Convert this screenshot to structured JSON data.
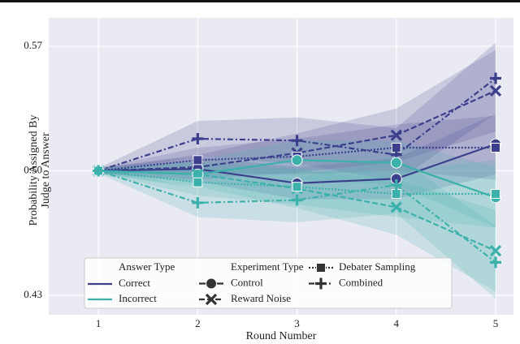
{
  "chart_data": {
    "type": "line",
    "xlabel": "Round Number",
    "ylabel": [
      "Probability Assigned By",
      "Judge to Answer"
    ],
    "x": [
      1,
      2,
      3,
      4,
      5
    ],
    "xlim": [
      0.5,
      5.18
    ],
    "ylim": [
      0.419,
      0.586
    ],
    "xticks": [
      1,
      2,
      3,
      4,
      5
    ],
    "yticks": [
      0.43,
      {
        "value": 0.5,
        "label": "0.50"
      },
      0.57
    ],
    "grid": true,
    "legend_position": "lower left",
    "legend_groups": [
      {
        "title": "Answer Type",
        "entries": [
          {
            "name": "Correct",
            "color": "#3b3f8c"
          },
          {
            "name": "Incorrect",
            "color": "#3cb1ab"
          }
        ]
      },
      {
        "title": "Experiment Type",
        "entries": [
          {
            "name": "Control",
            "dash": "solid",
            "marker": "circle"
          },
          {
            "name": "Reward Noise",
            "dash": "dashed",
            "marker": "x"
          },
          {
            "name": "Debater Sampling",
            "dash": "dotted",
            "marker": "square"
          },
          {
            "name": "Combined",
            "dash": "dashdot",
            "marker": "plus"
          }
        ]
      }
    ],
    "series": [
      {
        "answer": 0,
        "experiment": 0,
        "values": [
          0.5,
          0.501,
          0.493,
          0.4955,
          0.515
        ],
        "lower": [
          0.4985,
          0.494,
          0.484,
          0.484,
          0.498
        ],
        "upper": [
          0.5015,
          0.508,
          0.502,
          0.507,
          0.532
        ]
      },
      {
        "answer": 0,
        "experiment": 1,
        "values": [
          0.5,
          0.502,
          0.51,
          0.52,
          0.545
        ],
        "lower": [
          0.4985,
          0.495,
          0.499,
          0.505,
          0.522
        ],
        "upper": [
          0.5015,
          0.509,
          0.521,
          0.535,
          0.568
        ]
      },
      {
        "answer": 0,
        "experiment": 2,
        "values": [
          0.5,
          0.506,
          0.508,
          0.513,
          0.513
        ],
        "lower": [
          0.4985,
          0.499,
          0.498,
          0.5,
          0.495
        ],
        "upper": [
          0.5015,
          0.513,
          0.518,
          0.526,
          0.531
        ]
      },
      {
        "answer": 0,
        "experiment": 3,
        "values": [
          0.5,
          0.518,
          0.517,
          0.509,
          0.552
        ],
        "lower": [
          0.4985,
          0.508,
          0.504,
          0.494,
          0.532
        ],
        "upper": [
          0.5015,
          0.528,
          0.53,
          0.524,
          0.572
        ]
      },
      {
        "answer": 1,
        "experiment": 0,
        "values": [
          0.5,
          0.498,
          0.506,
          0.5045,
          0.485
        ],
        "lower": [
          0.4985,
          0.49,
          0.495,
          0.492,
          0.468
        ],
        "upper": [
          0.5015,
          0.506,
          0.517,
          0.517,
          0.502
        ]
      },
      {
        "answer": 1,
        "experiment": 1,
        "values": [
          0.5,
          0.498,
          0.49,
          0.4795,
          0.455
        ],
        "lower": [
          0.4985,
          0.491,
          0.479,
          0.464,
          0.432
        ],
        "upper": [
          0.5015,
          0.505,
          0.501,
          0.495,
          0.478
        ]
      },
      {
        "answer": 1,
        "experiment": 2,
        "values": [
          0.5,
          0.4935,
          0.491,
          0.487,
          0.487
        ],
        "lower": [
          0.4985,
          0.486,
          0.481,
          0.474,
          0.468
        ],
        "upper": [
          0.5015,
          0.501,
          0.501,
          0.5,
          0.506
        ]
      },
      {
        "answer": 1,
        "experiment": 3,
        "values": [
          0.5,
          0.482,
          0.4835,
          0.492,
          0.4485
        ],
        "lower": [
          0.4985,
          0.474,
          0.471,
          0.476,
          0.428
        ],
        "upper": [
          0.5015,
          0.49,
          0.496,
          0.508,
          0.469
        ]
      }
    ]
  }
}
